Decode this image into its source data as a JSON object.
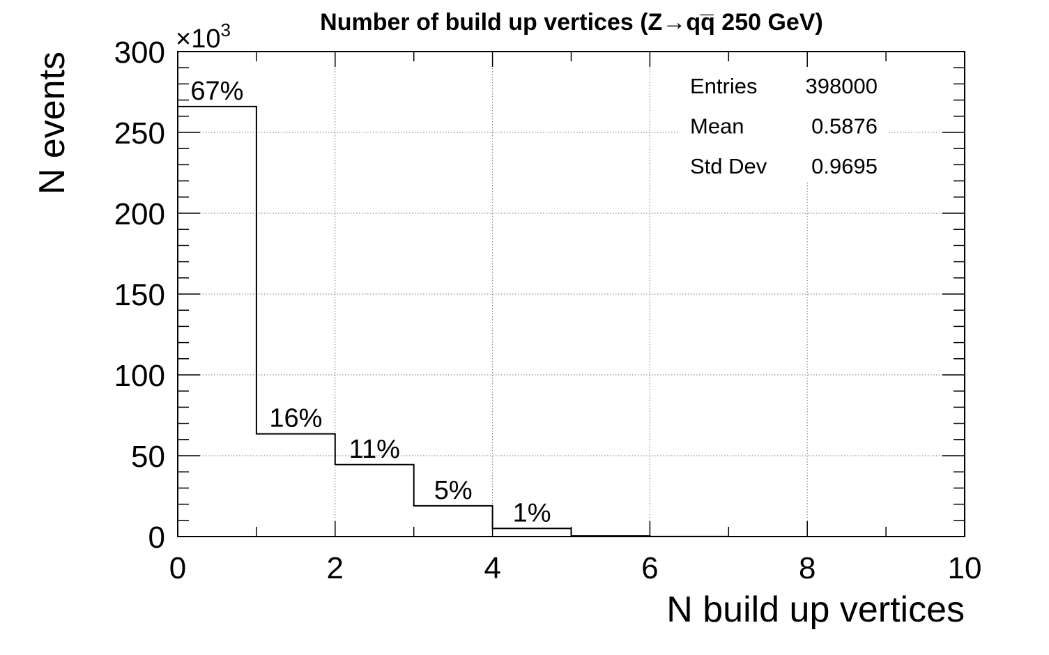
{
  "chart_data": {
    "type": "bar",
    "title": "Number of build up vertices (Z→qq̅  250 GeV)",
    "xlabel": "N build up vertices",
    "ylabel": "N events",
    "y_multiplier": "×10",
    "y_multiplier_exp": "3",
    "xlim": [
      0,
      10
    ],
    "ylim": [
      0,
      300
    ],
    "x_ticks": [
      0,
      2,
      4,
      6,
      8,
      10
    ],
    "y_ticks": [
      0,
      50,
      100,
      150,
      200,
      250,
      300
    ],
    "grid": true,
    "bins": [
      {
        "x0": 0,
        "x1": 1,
        "value": 266,
        "label": "67%"
      },
      {
        "x0": 1,
        "x1": 2,
        "value": 63.5,
        "label": "16%"
      },
      {
        "x0": 2,
        "x1": 3,
        "value": 44.5,
        "label": "11%"
      },
      {
        "x0": 3,
        "x1": 4,
        "value": 19,
        "label": "5%"
      },
      {
        "x0": 4,
        "x1": 5,
        "value": 5,
        "label": "1%"
      },
      {
        "x0": 5,
        "x1": 6,
        "value": 0.4,
        "label": ""
      },
      {
        "x0": 6,
        "x1": 7,
        "value": 0.05,
        "label": ""
      },
      {
        "x0": 7,
        "x1": 8,
        "value": 0,
        "label": ""
      },
      {
        "x0": 8,
        "x1": 9,
        "value": 0,
        "label": ""
      },
      {
        "x0": 9,
        "x1": 10,
        "value": 0,
        "label": ""
      }
    ],
    "stats": [
      {
        "name": "Entries",
        "value": "398000"
      },
      {
        "name": "Mean",
        "value": "0.5876"
      },
      {
        "name": "Std Dev",
        "value": "0.9695"
      }
    ],
    "line_color": "#000000"
  }
}
